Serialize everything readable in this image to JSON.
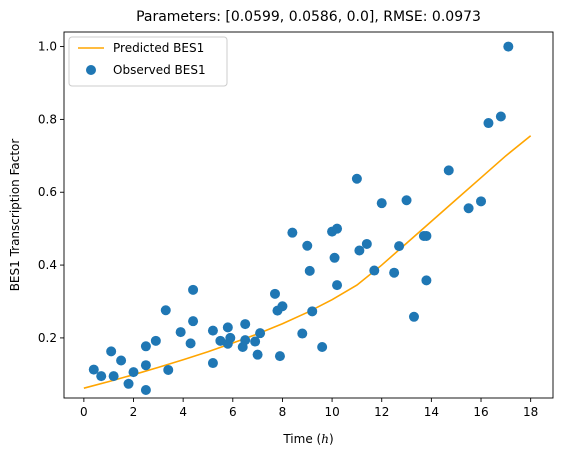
{
  "chart_data": {
    "type": "scatter",
    "title": "Parameters: [0.0599, 0.0586, 0.0], RMSE: 0.0973",
    "xlabel_prefix": "Time (",
    "xlabel_var": "h",
    "xlabel_suffix": ")",
    "ylabel": "BES1 Transcription Factor",
    "xlim": [
      -0.8,
      18.9
    ],
    "ylim": [
      0.035,
      1.04
    ],
    "x_ticks": [
      0,
      2,
      4,
      6,
      8,
      10,
      12,
      14,
      16,
      18
    ],
    "x_tick_labels": [
      "0",
      "2",
      "4",
      "6",
      "8",
      "10",
      "12",
      "14",
      "16",
      "18"
    ],
    "y_ticks": [
      0.2,
      0.4,
      0.6,
      0.8,
      1.0
    ],
    "y_tick_labels": [
      "0.2",
      "0.4",
      "0.6",
      "0.8",
      "1.0"
    ],
    "grid": false,
    "legend_position": "top-left",
    "series": [
      {
        "name": "Predicted BES1",
        "kind": "line",
        "color": "#ffa500",
        "x": [
          0,
          1,
          2,
          3,
          4,
          5,
          6,
          7,
          8,
          9,
          10,
          11,
          12,
          13,
          14,
          15,
          16,
          17,
          18
        ],
        "y": [
          0.062,
          0.08,
          0.099,
          0.119,
          0.14,
          0.162,
          0.186,
          0.211,
          0.239,
          0.27,
          0.305,
          0.345,
          0.4,
          0.46,
          0.52,
          0.58,
          0.64,
          0.7,
          0.755
        ]
      },
      {
        "name": "Observed BES1",
        "kind": "scatter",
        "color": "#1f77b4",
        "x": [
          0.4,
          0.7,
          1.1,
          1.2,
          1.5,
          1.8,
          2.0,
          2.5,
          2.5,
          2.5,
          2.9,
          3.3,
          3.4,
          3.9,
          4.3,
          4.4,
          4.4,
          5.2,
          5.2,
          5.5,
          5.8,
          5.8,
          5.9,
          6.4,
          6.5,
          6.5,
          6.9,
          7.0,
          7.1,
          7.7,
          7.8,
          7.9,
          8.0,
          8.4,
          8.8,
          9.0,
          9.1,
          9.2,
          9.6,
          10.0,
          10.1,
          10.2,
          10.2,
          11.0,
          11.1,
          11.4,
          11.7,
          12.0,
          12.5,
          12.7,
          13.0,
          13.3,
          13.7,
          13.8,
          13.8,
          14.7,
          15.5,
          16.0,
          16.3,
          16.8,
          17.1
        ],
        "y": [
          0.113,
          0.095,
          0.163,
          0.095,
          0.138,
          0.074,
          0.106,
          0.057,
          0.125,
          0.177,
          0.192,
          0.276,
          0.112,
          0.216,
          0.185,
          0.246,
          0.332,
          0.131,
          0.22,
          0.192,
          0.184,
          0.229,
          0.2,
          0.175,
          0.194,
          0.238,
          0.19,
          0.154,
          0.213,
          0.321,
          0.275,
          0.15,
          0.287,
          0.489,
          0.212,
          0.453,
          0.384,
          0.273,
          0.175,
          0.492,
          0.42,
          0.345,
          0.5,
          0.637,
          0.44,
          0.458,
          0.385,
          0.57,
          0.379,
          0.452,
          0.578,
          0.258,
          0.48,
          0.358,
          0.48,
          0.66,
          0.556,
          0.575,
          0.79,
          0.808,
          1.0
        ]
      }
    ]
  }
}
